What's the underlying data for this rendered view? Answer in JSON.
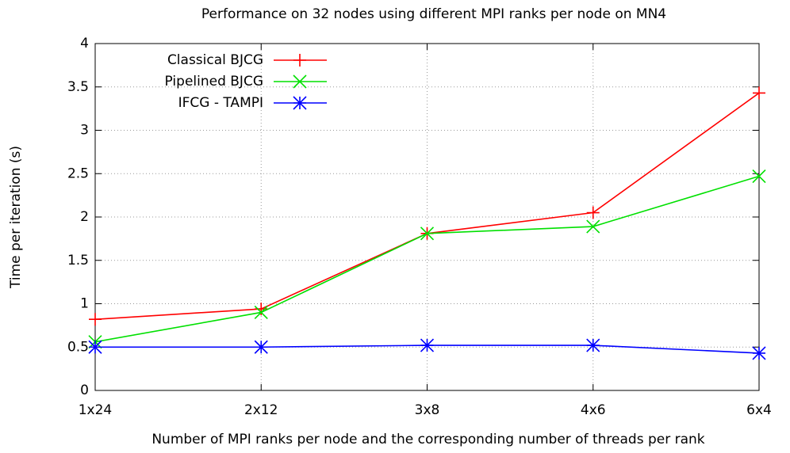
{
  "chart_data": {
    "type": "line",
    "title": "Performance on 32 nodes using different MPI ranks per node on MN4",
    "xlabel": "Number of MPI ranks per node and the corresponding number of threads per rank",
    "ylabel": "Time per iteration (s)",
    "categories": [
      "1x24",
      "2x12",
      "3x8",
      "4x6",
      "6x4"
    ],
    "series": [
      {
        "name": "Classical BJCG",
        "color": "#ff0000",
        "marker": "plus",
        "values": [
          0.82,
          0.94,
          1.81,
          2.05,
          3.43
        ]
      },
      {
        "name": "Pipelined BJCG",
        "color": "#00e000",
        "marker": "cross",
        "values": [
          0.56,
          0.9,
          1.81,
          1.89,
          2.47
        ]
      },
      {
        "name": "IFCG - TAMPI",
        "color": "#0000ff",
        "marker": "star",
        "values": [
          0.5,
          0.5,
          0.52,
          0.52,
          0.43
        ]
      }
    ],
    "ylim": [
      0,
      4
    ],
    "yticks": [
      0,
      0.5,
      1,
      1.5,
      2,
      2.5,
      3,
      3.5,
      4
    ],
    "grid": true,
    "legend": "top-left"
  }
}
